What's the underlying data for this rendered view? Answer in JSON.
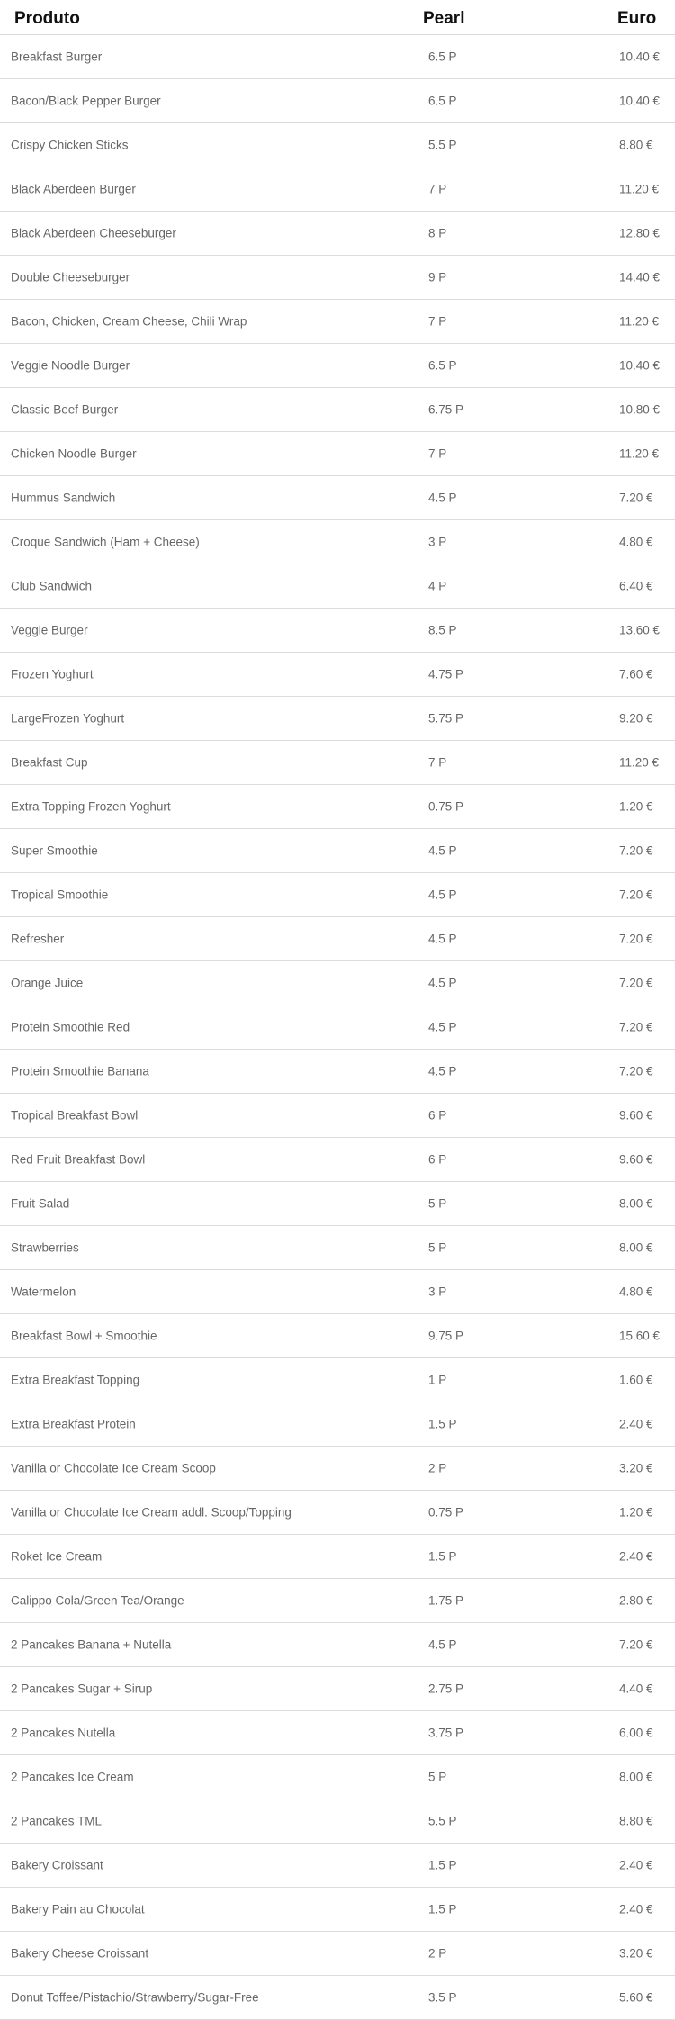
{
  "table": {
    "headers": {
      "product": "Produto",
      "pearl": "Pearl",
      "euro": "Euro"
    },
    "rows": [
      {
        "product": "Breakfast Burger",
        "pearl": "6.5 P",
        "euro": "10.40 €"
      },
      {
        "product": "Bacon/Black Pepper Burger",
        "pearl": "6.5 P",
        "euro": "10.40 €"
      },
      {
        "product": "Crispy Chicken Sticks",
        "pearl": "5.5 P",
        "euro": "8.80 €"
      },
      {
        "product": "Black Aberdeen Burger",
        "pearl": "7 P",
        "euro": "11.20 €"
      },
      {
        "product": "Black Aberdeen Cheeseburger",
        "pearl": "8 P",
        "euro": "12.80 €"
      },
      {
        "product": "Double Cheeseburger",
        "pearl": "9 P",
        "euro": "14.40 €"
      },
      {
        "product": "Bacon, Chicken, Cream Cheese, Chili Wrap",
        "pearl": "7 P",
        "euro": "11.20 €"
      },
      {
        "product": "Veggie Noodle Burger",
        "pearl": "6.5 P",
        "euro": "10.40 €"
      },
      {
        "product": "Classic Beef Burger",
        "pearl": "6.75 P",
        "euro": "10.80 €"
      },
      {
        "product": "Chicken Noodle Burger",
        "pearl": "7 P",
        "euro": "11.20 €"
      },
      {
        "product": "Hummus Sandwich",
        "pearl": "4.5 P",
        "euro": "7.20 €"
      },
      {
        "product": "Croque Sandwich (Ham + Cheese)",
        "pearl": "3 P",
        "euro": "4.80 €"
      },
      {
        "product": "Club Sandwich",
        "pearl": "4 P",
        "euro": "6.40 €"
      },
      {
        "product": "Veggie Burger",
        "pearl": "8.5 P",
        "euro": "13.60 €"
      },
      {
        "product": "Frozen Yoghurt",
        "pearl": "4.75 P",
        "euro": "7.60 €"
      },
      {
        "product": "LargeFrozen Yoghurt",
        "pearl": "5.75 P",
        "euro": "9.20 €"
      },
      {
        "product": "Breakfast Cup",
        "pearl": "7 P",
        "euro": "11.20 €"
      },
      {
        "product": "Extra Topping Frozen Yoghurt",
        "pearl": "0.75 P",
        "euro": "1.20 €"
      },
      {
        "product": "Super Smoothie",
        "pearl": "4.5 P",
        "euro": "7.20 €"
      },
      {
        "product": "Tropical Smoothie",
        "pearl": "4.5 P",
        "euro": "7.20 €"
      },
      {
        "product": "Refresher",
        "pearl": "4.5 P",
        "euro": "7.20 €"
      },
      {
        "product": "Orange Juice",
        "pearl": "4.5 P",
        "euro": "7.20 €"
      },
      {
        "product": "Protein Smoothie Red",
        "pearl": "4.5 P",
        "euro": "7.20 €"
      },
      {
        "product": "Protein Smoothie Banana",
        "pearl": "4.5 P",
        "euro": "7.20 €"
      },
      {
        "product": "Tropical Breakfast Bowl",
        "pearl": "6 P",
        "euro": "9.60 €"
      },
      {
        "product": "Red Fruit Breakfast Bowl",
        "pearl": "6 P",
        "euro": "9.60 €"
      },
      {
        "product": "Fruit Salad",
        "pearl": "5 P",
        "euro": "8.00 €"
      },
      {
        "product": "Strawberries",
        "pearl": "5 P",
        "euro": "8.00 €"
      },
      {
        "product": "Watermelon",
        "pearl": "3 P",
        "euro": "4.80 €"
      },
      {
        "product": "Breakfast Bowl + Smoothie",
        "pearl": "9.75 P",
        "euro": "15.60 €"
      },
      {
        "product": "Extra Breakfast Topping",
        "pearl": "1 P",
        "euro": "1.60 €"
      },
      {
        "product": "Extra Breakfast Protein",
        "pearl": "1.5 P",
        "euro": "2.40 €"
      },
      {
        "product": "Vanilla or Chocolate Ice Cream Scoop",
        "pearl": "2 P",
        "euro": "3.20 €"
      },
      {
        "product": "Vanilla or Chocolate Ice Cream addl. Scoop/Topping",
        "pearl": "0.75 P",
        "euro": "1.20 €"
      },
      {
        "product": "Roket Ice Cream",
        "pearl": "1.5 P",
        "euro": "2.40 €"
      },
      {
        "product": "Calippo Cola/Green Tea/Orange",
        "pearl": "1.75 P",
        "euro": "2.80 €"
      },
      {
        "product": "2 Pancakes Banana + Nutella",
        "pearl": "4.5 P",
        "euro": "7.20 €"
      },
      {
        "product": "2 Pancakes Sugar + Sirup",
        "pearl": "2.75 P",
        "euro": "4.40 €"
      },
      {
        "product": "2 Pancakes Nutella",
        "pearl": "3.75 P",
        "euro": "6.00 €"
      },
      {
        "product": "2 Pancakes Ice Cream",
        "pearl": "5 P",
        "euro": "8.00 €"
      },
      {
        "product": "2 Pancakes TML",
        "pearl": "5.5 P",
        "euro": "8.80 €"
      },
      {
        "product": "Bakery Croissant",
        "pearl": "1.5 P",
        "euro": "2.40 €"
      },
      {
        "product": "Bakery Pain au Chocolat",
        "pearl": "1.5 P",
        "euro": "2.40 €"
      },
      {
        "product": "Bakery Cheese Croissant",
        "pearl": "2 P",
        "euro": "3.20 €"
      },
      {
        "product": "Donut Toffee/Pistachio/Strawberry/Sugar-Free",
        "pearl": "3.5 P",
        "euro": "5.60 €"
      }
    ]
  }
}
